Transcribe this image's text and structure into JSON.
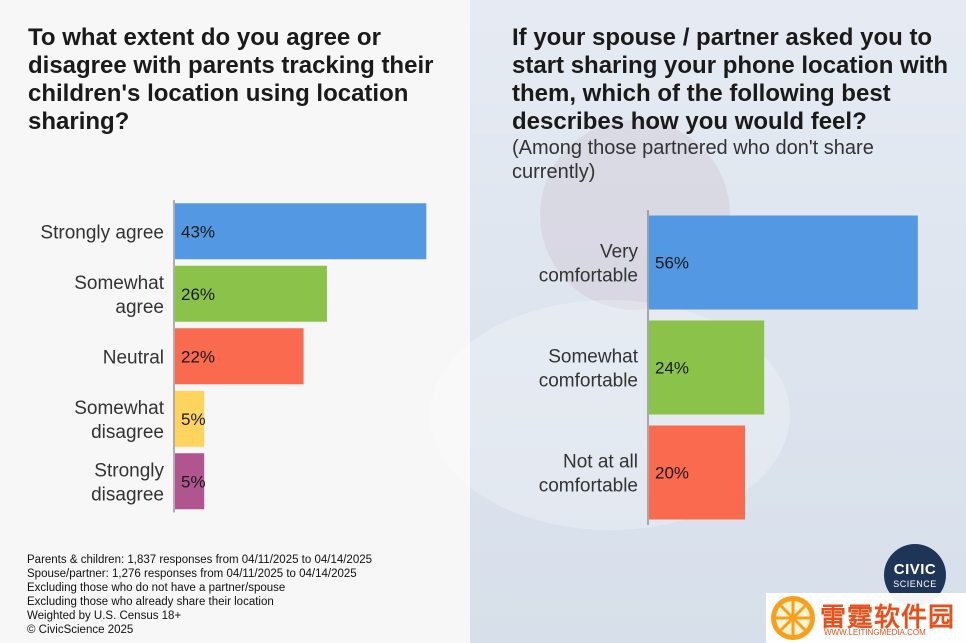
{
  "colors": {
    "blue": "#5398e3",
    "green": "#8bc34a",
    "orange": "#f96a4f",
    "yellow": "#ffd45c",
    "purple": "#b0558d"
  },
  "chart_data": [
    {
      "type": "bar",
      "orientation": "horizontal",
      "title": "To what extent do you agree or disagree with parents tracking their children's location using location sharing?",
      "categories": [
        [
          "Strongly agree"
        ],
        [
          "Somewhat",
          "agree"
        ],
        [
          "Neutral"
        ],
        [
          "Somewhat",
          "disagree"
        ],
        [
          "Strongly",
          "disagree"
        ]
      ],
      "values": [
        43,
        26,
        22,
        5,
        5
      ],
      "value_labels": [
        "43%",
        "26%",
        "22%",
        "5%",
        "5%"
      ],
      "colors": [
        "#5398e3",
        "#8bc34a",
        "#f96a4f",
        "#ffd45c",
        "#b0558d"
      ],
      "xlim": [
        0,
        45
      ],
      "unit": "%",
      "grid": false
    },
    {
      "type": "bar",
      "orientation": "horizontal",
      "title": "If your spouse / partner asked you to start sharing your phone location with them, which of the following best describes how you would feel?",
      "subtitle": "(Among those partnered who don't share currently)",
      "categories": [
        [
          "Very",
          "comfortable"
        ],
        [
          "Somewhat",
          "comfortable"
        ],
        [
          "Not at all",
          "comfortable"
        ]
      ],
      "values": [
        56,
        24,
        20
      ],
      "value_labels": [
        "56%",
        "24%",
        "20%"
      ],
      "colors": [
        "#5398e3",
        "#8bc34a",
        "#f96a4f"
      ],
      "xlim": [
        0,
        57.5
      ],
      "unit": "%",
      "grid": false
    }
  ],
  "notes": [
    "Parents & children: 1,837 responses from 04/11/2025 to 04/14/2025",
    "Spouse/partner: 1,276 responses from 04/11/2025 to 04/14/2025",
    "Excluding those who do not have a partner/spouse",
    "Excluding those who already share their location",
    "Weighted by U.S. Census 18+",
    "© CivicScience 2025"
  ],
  "logo": {
    "line1": "CIVIC",
    "line2": "SCIENCE"
  },
  "watermark": {
    "text": "雷霆软件园",
    "url": "WWW.LEITINGMEDIA.COM"
  }
}
